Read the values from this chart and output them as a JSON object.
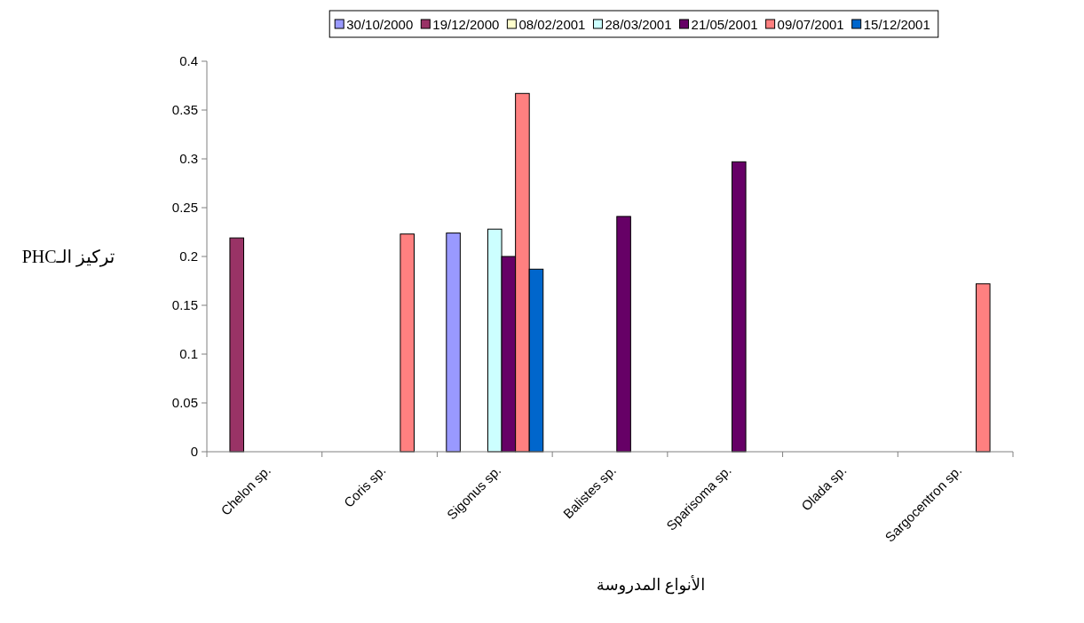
{
  "chart_data": {
    "type": "bar",
    "xlabel": "الأنواع المدروسة",
    "ylabel": "تركيز الـPHC",
    "categories": [
      "Chelon sp.",
      "Coris sp.",
      "Sigonus sp.",
      "Balistes sp.",
      "Sparisoma sp.",
      "Olada sp.",
      "Sargocentron sp."
    ],
    "series": [
      {
        "name": "30/10/2000",
        "color": "#9999ff",
        "values": [
          null,
          null,
          0.224,
          null,
          null,
          null,
          null
        ]
      },
      {
        "name": "19/12/2000",
        "color": "#993366",
        "values": [
          0.219,
          null,
          null,
          null,
          null,
          null,
          null
        ]
      },
      {
        "name": "08/02/2001",
        "color": "#ffffcc",
        "values": [
          null,
          null,
          null,
          null,
          null,
          null,
          null
        ]
      },
      {
        "name": "28/03/2001",
        "color": "#ccffff",
        "values": [
          null,
          null,
          0.228,
          null,
          null,
          null,
          null
        ]
      },
      {
        "name": "21/05/2001",
        "color": "#660066",
        "values": [
          null,
          null,
          0.2,
          0.241,
          0.297,
          null,
          null
        ]
      },
      {
        "name": "09/07/2001",
        "color": "#ff8080",
        "values": [
          null,
          0.223,
          0.367,
          null,
          null,
          null,
          0.172
        ]
      },
      {
        "name": "15/12/2001",
        "color": "#0066cc",
        "values": [
          null,
          null,
          0.187,
          null,
          null,
          null,
          null
        ]
      }
    ],
    "ylim": [
      0,
      0.4
    ],
    "yticks": [
      0,
      0.05,
      0.1,
      0.15,
      0.2,
      0.25,
      0.3,
      0.35,
      0.4
    ],
    "grid": false,
    "legend": "top"
  }
}
